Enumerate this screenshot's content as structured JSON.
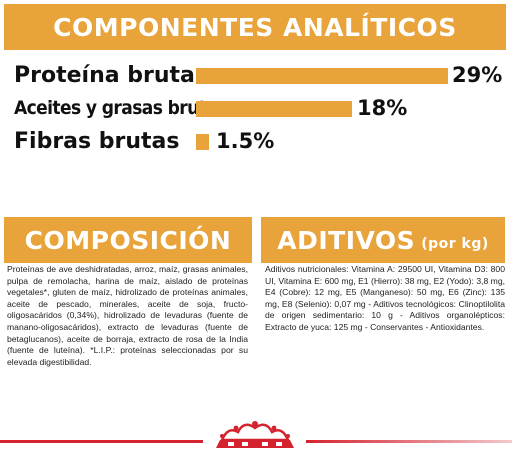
{
  "analiticos": {
    "title": "COMPONENTES ANALÍTICOS",
    "rows": [
      {
        "label": "Proteína bruta",
        "value": 29,
        "display": "29%"
      },
      {
        "label": "Aceites y grasas brutos",
        "value": 18,
        "display": "18%"
      },
      {
        "label": "Fibras brutas",
        "value": 1.5,
        "display": "1.5%"
      }
    ]
  },
  "composicion": {
    "title": "COMPOSICIÓN",
    "text": "Proteínas de ave deshidratadas, arroz, maíz, grasas animales, pulpa de remolacha, harina de maíz, aislado de proteínas vegetales*, gluten de maíz, hidrolizado de proteínas animales, aceite de pescado, minerales, aceite de soja, fructo-oligosacáridos (0,34%), hidrolizado de levaduras (fuente de manano-oligosacáridos), extracto de levaduras (fuente de betaglucanos), aceite de borraja, extracto de rosa de la India (fuente de luteína). *L.I.P.: proteínas seleccionadas por su elevada digestibilidad."
  },
  "aditivos": {
    "title": "ADITIVOS",
    "subtitle": "(por kg)",
    "text": "Aditivos nutricionales: Vitamina A: 29500 UI, Vitamina D3: 800 UI, Vitamina E: 600 mg, E1 (Hierro): 38 mg, E2 (Yodo): 3,8 mg, E4 (Cobre): 12 mg, E5 (Manganeso): 50 mg, E6 (Zinc): 135 mg, E8 (Selenio): 0,07 mg - Aditivos tecnológicos: Clinoptilolita de origen sedimentario: 10 g - Aditivos organolépticos: Extracto de yuca: 125 mg - Conservantes - Antioxidantes."
  },
  "footer": {
    "logo": "royal-canin-crown-icon"
  },
  "colors": {
    "accent": "#E8A33A",
    "brand_red": "#d4232f"
  }
}
